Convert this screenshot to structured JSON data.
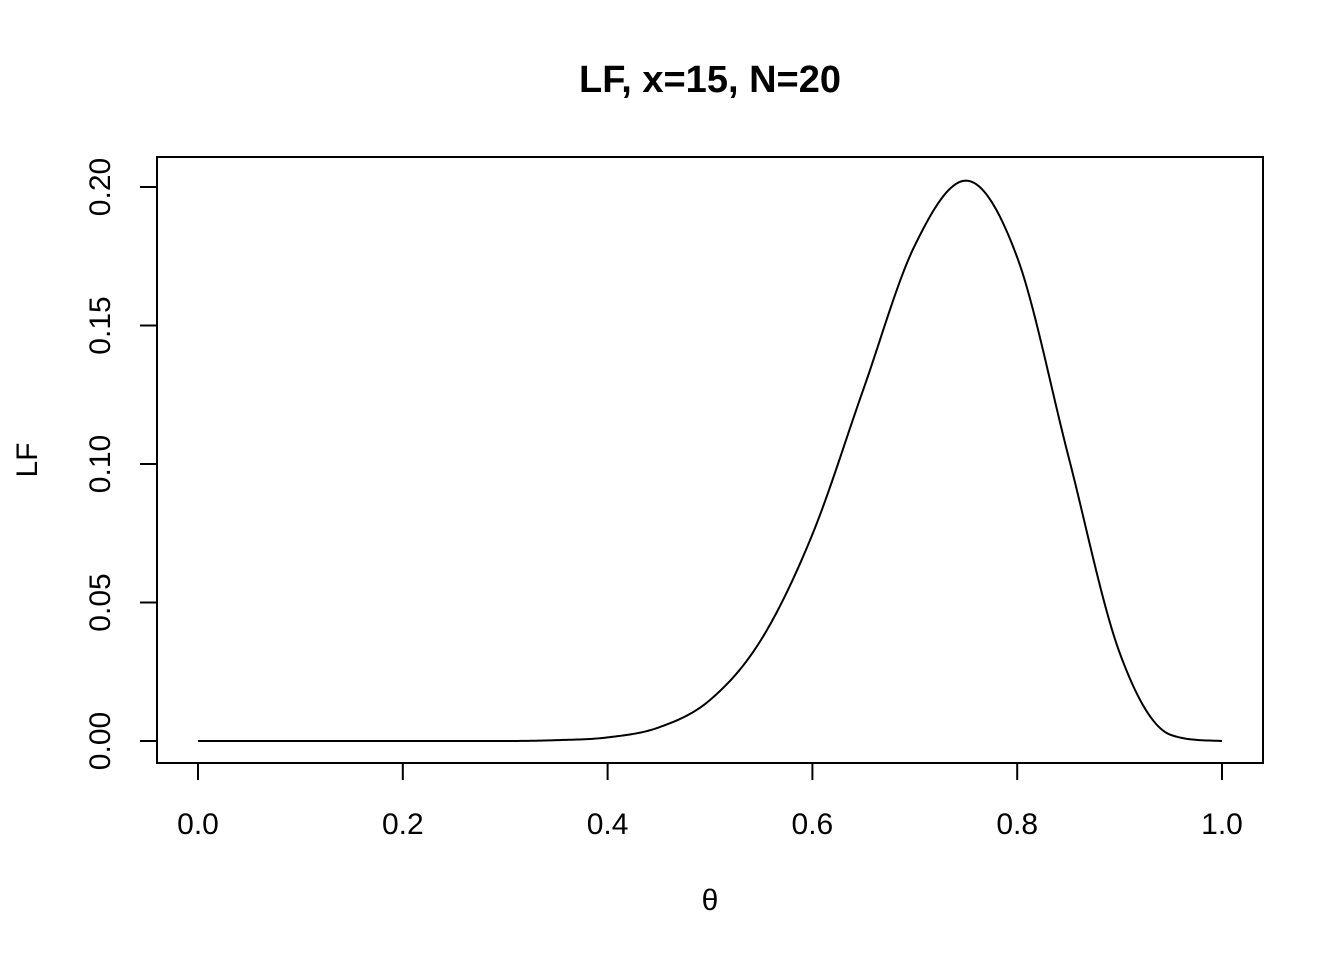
{
  "chart_data": {
    "type": "line",
    "title": "LF, x=15, N=20",
    "xlabel": "θ",
    "ylabel": "LF",
    "xlim": [
      0,
      1
    ],
    "ylim": [
      0,
      0.2
    ],
    "grid": false,
    "legend": "none",
    "x_ticks": [
      0,
      0.2,
      0.4,
      0.6,
      0.8,
      1
    ],
    "x_tick_labels": [
      "0.0",
      "0.2",
      "0.4",
      "0.6",
      "0.8",
      "1.0"
    ],
    "y_ticks": [
      0,
      0.05,
      0.1,
      0.15,
      0.2
    ],
    "y_tick_labels": [
      "0.00",
      "0.05",
      "0.10",
      "0.15",
      "0.20"
    ],
    "line_color": "#000000",
    "series": [
      {
        "x": [
          0.0,
          0.05,
          0.1,
          0.15,
          0.2,
          0.25,
          0.3,
          0.35,
          0.4,
          0.45,
          0.5,
          0.55,
          0.6,
          0.65,
          0.7,
          0.75,
          0.8,
          0.85,
          0.9,
          0.95,
          1.0
        ],
        "values": [
          0.0,
          0.0,
          0.0,
          0.0,
          0.0,
          0.0,
          0.0,
          0.0003,
          0.0013,
          0.0049,
          0.0148,
          0.0366,
          0.0746,
          0.1272,
          0.1789,
          0.2023,
          0.1746,
          0.1028,
          0.0319,
          0.0022,
          0.0
        ]
      }
    ]
  }
}
